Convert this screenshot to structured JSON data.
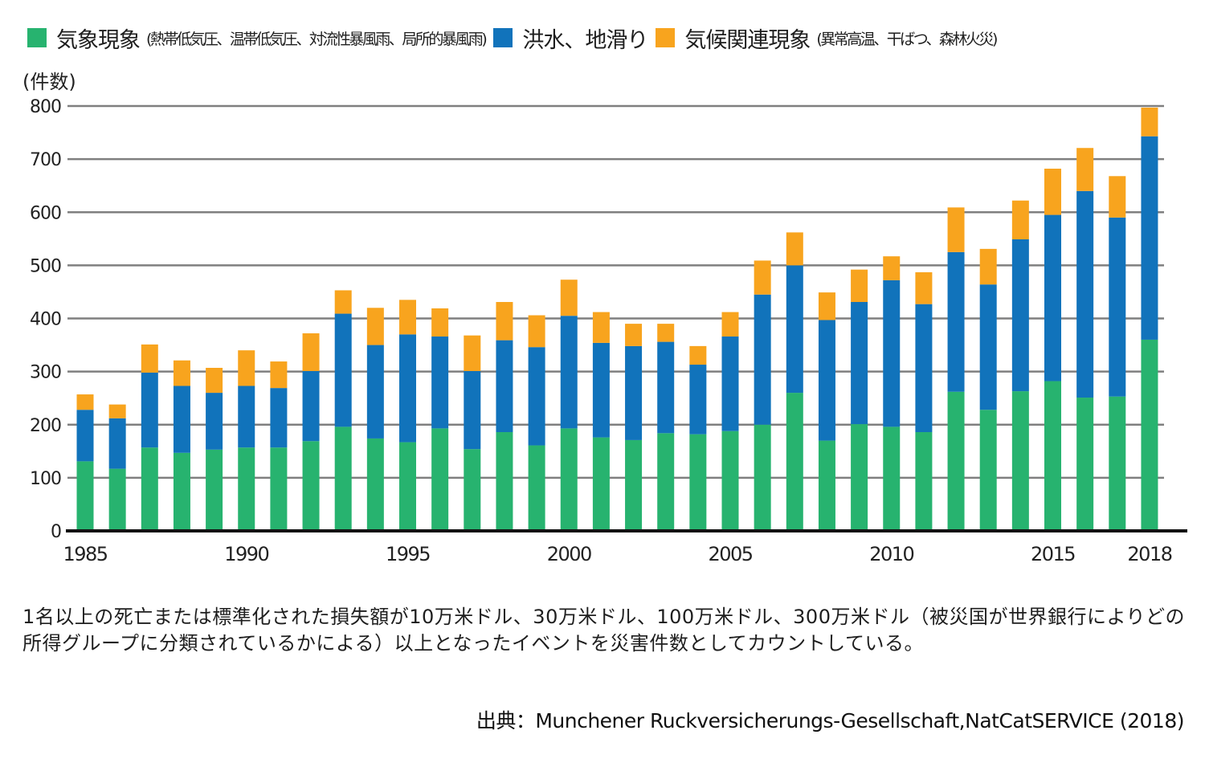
{
  "chart_data": {
    "type": "bar",
    "stacked": true,
    "title": "",
    "xlabel": "",
    "ylabel": "(件数)",
    "ylim": [
      0,
      800
    ],
    "yticks": [
      0,
      100,
      200,
      300,
      400,
      500,
      600,
      700,
      800
    ],
    "grid": true,
    "legend_position": "top",
    "categories": [
      "1985",
      "1986",
      "1987",
      "1988",
      "1989",
      "1990",
      "1991",
      "1992",
      "1993",
      "1994",
      "1995",
      "1996",
      "1997",
      "1998",
      "1999",
      "2000",
      "2001",
      "2002",
      "2003",
      "2004",
      "2005",
      "2006",
      "2007",
      "2008",
      "2009",
      "2010",
      "2011",
      "2012",
      "2013",
      "2014",
      "2015",
      "2016",
      "2017",
      "2018"
    ],
    "xtick_labels": [
      "1985",
      "1990",
      "1995",
      "2000",
      "2005",
      "2010",
      "2015",
      "2018"
    ],
    "series": [
      {
        "name": "気象現象",
        "detail": "(熱帯低気圧、温帯低気圧、対流性暴風雨、局所的暴風雨)",
        "color": "#27b36f",
        "values": [
          131,
          117,
          157,
          147,
          153,
          157,
          157,
          169,
          196,
          174,
          167,
          193,
          154,
          186,
          161,
          193,
          176,
          171,
          184,
          182,
          188,
          200,
          260,
          170,
          201,
          196,
          186,
          262,
          228,
          263,
          282,
          251,
          253,
          360
        ]
      },
      {
        "name": "洪水、地滑り",
        "detail": "",
        "color": "#1173bb",
        "values": [
          97,
          95,
          141,
          126,
          107,
          116,
          112,
          132,
          213,
          176,
          203,
          173,
          147,
          173,
          185,
          212,
          178,
          177,
          172,
          131,
          178,
          245,
          240,
          227,
          230,
          276,
          241,
          263,
          236,
          286,
          313,
          389,
          337,
          383
        ]
      },
      {
        "name": "気候関連現象",
        "detail": "(異常高温、干ばつ、森林火災)",
        "color": "#f8a41e",
        "values": [
          29,
          26,
          53,
          48,
          47,
          67,
          50,
          71,
          44,
          70,
          65,
          53,
          67,
          72,
          60,
          68,
          58,
          42,
          34,
          35,
          46,
          64,
          62,
          52,
          61,
          45,
          60,
          84,
          67,
          73,
          87,
          81,
          78,
          54
        ]
      }
    ]
  },
  "note": "1名以上の死亡または標準化された損失額が10万米ドル、30万米ドル、100万米ドル、300万米ドル（被災国が世界銀行によりどの所得グループに分類されているかによる）以上となったイベントを災害件数としてカウントしている。",
  "source": "出典：Munchener Ruckversicherungs-Gesellschaft,NatCatSERVICE (2018)"
}
